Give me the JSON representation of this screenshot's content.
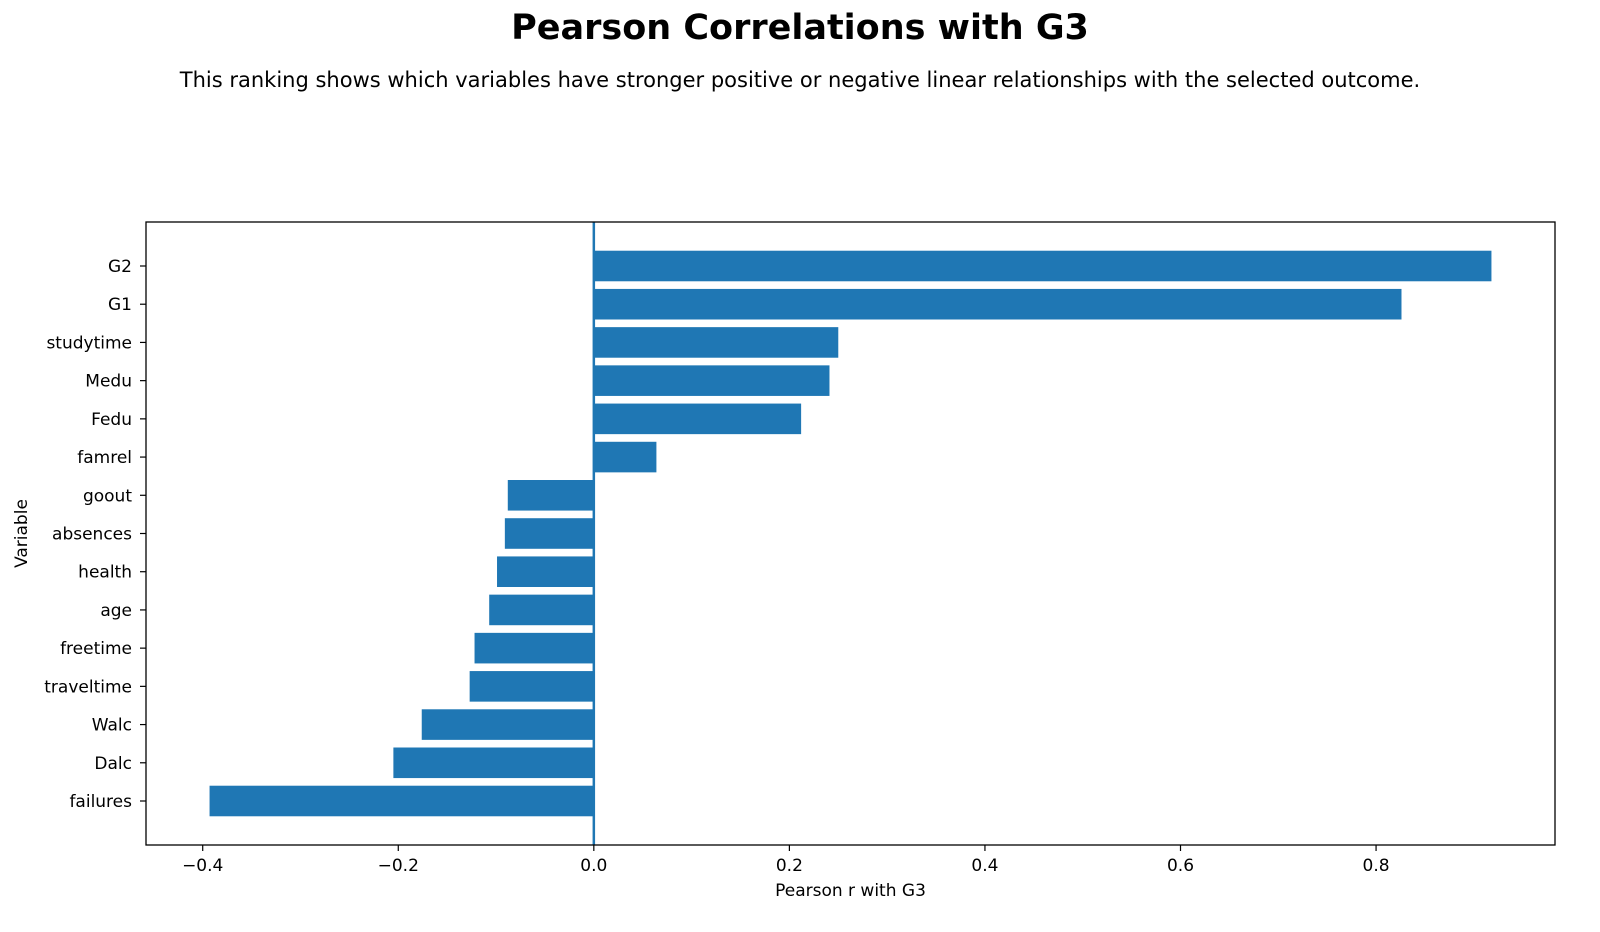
{
  "title": "Pearson Correlations with G3",
  "subtitle": "This ranking shows which variables have stronger positive or negative linear relationships with the selected outcome.",
  "chart_data": {
    "type": "bar",
    "orientation": "horizontal",
    "xlabel": "Pearson r with G3",
    "ylabel": "Variable",
    "categories": [
      "G2",
      "G1",
      "studytime",
      "Medu",
      "Fedu",
      "famrel",
      "goout",
      "absences",
      "health",
      "age",
      "freetime",
      "traveltime",
      "Walc",
      "Dalc",
      "failures"
    ],
    "values": [
      0.918,
      0.826,
      0.25,
      0.241,
      0.212,
      0.064,
      -0.088,
      -0.091,
      -0.099,
      -0.107,
      -0.122,
      -0.127,
      -0.176,
      -0.205,
      -0.393
    ],
    "xlim": [
      -0.458,
      0.983
    ],
    "xticks": [
      -0.4,
      -0.2,
      0.0,
      0.2,
      0.4,
      0.6,
      0.8
    ],
    "xtick_labels": [
      "−0.4",
      "−0.2",
      "0.0",
      "0.2",
      "0.4",
      "0.6",
      "0.8"
    ],
    "bar_color": "#1f77b4",
    "zero_line": true,
    "grid": false,
    "legend": false
  }
}
